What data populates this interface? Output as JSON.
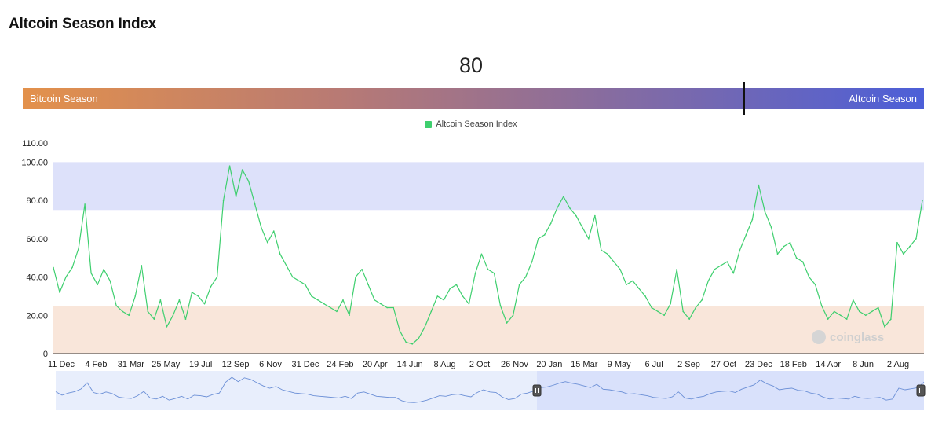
{
  "page": {
    "title": "Altcoin Season Index"
  },
  "index": {
    "current_value": "80",
    "value_numeric": 80,
    "left_label": "Bitcoin Season",
    "right_label": "Altcoin Season"
  },
  "watermark": {
    "text": "coinglass"
  },
  "colors": {
    "line": "#3ecf6e",
    "altcoin_zone": "#dde1fa",
    "bitcoin_zone": "#f9e6da",
    "navigator_fill": "#e8eefc",
    "navigator_line": "#6b8fd6",
    "navigator_selected": "#d9e1fb"
  },
  "chart_data": {
    "type": "line",
    "title": "",
    "xlabel": "",
    "ylabel": "",
    "ylim": [
      0,
      110
    ],
    "y_ticks": [
      "0",
      "20.00",
      "40.00",
      "60.00",
      "80.00",
      "100.00",
      "110.00"
    ],
    "y_tick_values": [
      0,
      20,
      40,
      60,
      80,
      100,
      110
    ],
    "x_ticks": [
      "11 Dec",
      "4 Feb",
      "31 Mar",
      "25 May",
      "19 Jul",
      "12 Sep",
      "6 Nov",
      "31 Dec",
      "24 Feb",
      "20 Apr",
      "14 Jun",
      "8 Aug",
      "2 Oct",
      "26 Nov",
      "20 Jan",
      "15 Mar",
      "9 May",
      "6 Jul",
      "2 Sep",
      "27 Oct",
      "23 Dec",
      "18 Feb",
      "14 Apr",
      "8 Jun",
      "2 Aug"
    ],
    "bands": [
      {
        "from": 75,
        "to": 100,
        "color": "#dde1fa"
      },
      {
        "from": 0,
        "to": 25,
        "color": "#f9e6da"
      }
    ],
    "grid": false,
    "legend": "top-center",
    "series": [
      {
        "name": "Altcoin Season Index",
        "values": [
          45,
          32,
          40,
          45,
          55,
          78,
          42,
          36,
          44,
          38,
          25,
          22,
          20,
          30,
          46,
          22,
          18,
          28,
          14,
          20,
          28,
          18,
          32,
          30,
          26,
          35,
          40,
          80,
          98,
          82,
          96,
          90,
          78,
          66,
          58,
          64,
          52,
          46,
          40,
          38,
          36,
          30,
          28,
          26,
          24,
          22,
          28,
          20,
          40,
          44,
          36,
          28,
          26,
          24,
          24,
          12,
          6,
          5,
          8,
          14,
          22,
          30,
          28,
          34,
          36,
          30,
          26,
          42,
          52,
          44,
          42,
          25,
          16,
          20,
          36,
          40,
          48,
          60,
          62,
          68,
          76,
          82,
          76,
          72,
          66,
          60,
          72,
          54,
          52,
          48,
          44,
          36,
          38,
          34,
          30,
          24,
          22,
          20,
          26,
          44,
          22,
          18,
          24,
          28,
          38,
          44,
          46,
          48,
          42,
          54,
          62,
          70,
          88,
          74,
          66,
          52,
          56,
          58,
          50,
          48,
          40,
          36,
          25,
          18,
          22,
          20,
          18,
          28,
          22,
          20,
          22,
          24,
          14,
          18,
          58,
          52,
          56,
          60,
          80
        ]
      }
    ]
  }
}
